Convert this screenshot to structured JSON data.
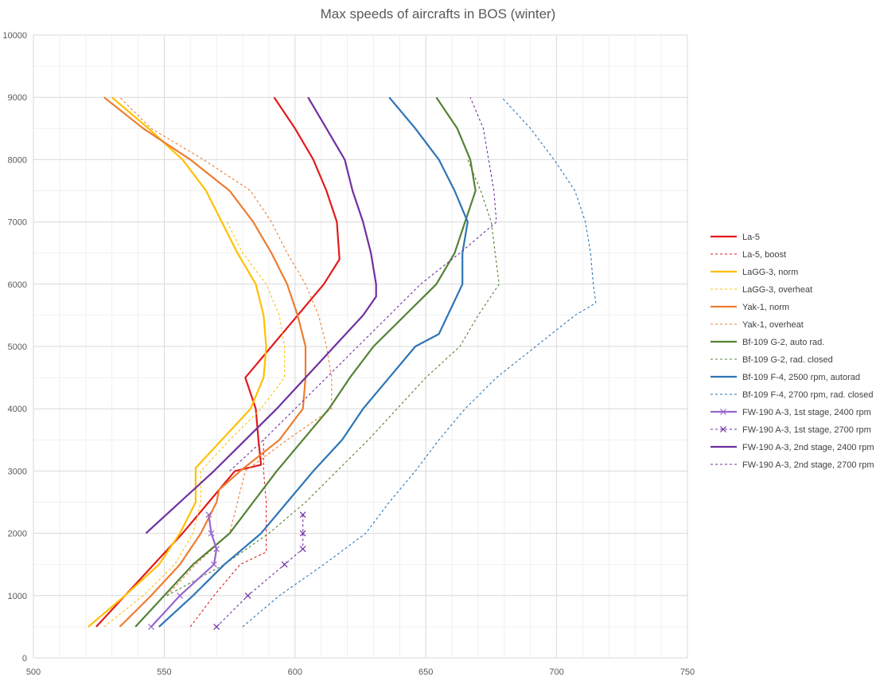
{
  "chart_data": {
    "type": "line",
    "title": "Max speeds of aircrafts in BOS (winter)",
    "xlabel": "",
    "ylabel": "",
    "xlim": [
      500,
      750
    ],
    "ylim": [
      0,
      10000
    ],
    "x_major_ticks": [
      500,
      550,
      600,
      650,
      700,
      750
    ],
    "x_minor_step": 10,
    "y_major_ticks": [
      0,
      1000,
      2000,
      3000,
      4000,
      5000,
      6000,
      7000,
      8000,
      9000,
      10000
    ],
    "y_minor_step": 500,
    "grid": true,
    "legend_position": "right",
    "series": [
      {
        "name": "La-5",
        "color": "#e31a1c",
        "dash": "solid",
        "marker": "none",
        "points": [
          [
            524,
            500
          ],
          [
            535,
            1000
          ],
          [
            546,
            1500
          ],
          [
            557,
            2000
          ],
          [
            567,
            2500
          ],
          [
            577,
            3000
          ],
          [
            587,
            3100
          ],
          [
            586,
            3500
          ],
          [
            585,
            4000
          ],
          [
            581,
            4500
          ],
          [
            583,
            4600
          ],
          [
            591,
            5000
          ],
          [
            601,
            5500
          ],
          [
            611,
            6000
          ],
          [
            617,
            6400
          ],
          [
            616,
            7000
          ],
          [
            612,
            7500
          ],
          [
            607,
            8000
          ],
          [
            600,
            8500
          ],
          [
            592,
            9000
          ]
        ]
      },
      {
        "name": "La-5, boost",
        "color": "#e31a1c",
        "dash": "dashed",
        "marker": "none",
        "points": [
          [
            560,
            500
          ],
          [
            569,
            1000
          ],
          [
            579,
            1500
          ],
          [
            589,
            1700
          ],
          [
            589,
            2000
          ],
          [
            589,
            2500
          ],
          [
            588,
            3000
          ],
          [
            588,
            3500
          ]
        ]
      },
      {
        "name": "LaGG-3, norm",
        "color": "#ffc000",
        "dash": "solid",
        "marker": "none",
        "points": [
          [
            521,
            500
          ],
          [
            535,
            1000
          ],
          [
            548,
            1500
          ],
          [
            556,
            2000
          ],
          [
            562,
            2500
          ],
          [
            562,
            3000
          ],
          [
            562,
            3050
          ],
          [
            572,
            3500
          ],
          [
            583,
            4000
          ],
          [
            588,
            4500
          ],
          [
            589,
            5000
          ],
          [
            588,
            5500
          ],
          [
            585,
            6000
          ],
          [
            578,
            6500
          ],
          [
            572,
            7000
          ],
          [
            566,
            7500
          ],
          [
            557,
            8000
          ],
          [
            544,
            8500
          ],
          [
            530,
            9000
          ]
        ]
      },
      {
        "name": "LaGG-3, overheat",
        "color": "#ffc000",
        "dash": "dashed",
        "marker": "none",
        "points": [
          [
            527,
            500
          ],
          [
            542,
            1000
          ],
          [
            554,
            1500
          ],
          [
            561,
            2000
          ],
          [
            564,
            2500
          ],
          [
            564,
            3000
          ],
          [
            575,
            3500
          ],
          [
            587,
            4000
          ],
          [
            596,
            4500
          ],
          [
            596,
            5000
          ],
          [
            594,
            5500
          ],
          [
            589,
            6000
          ],
          [
            580,
            6500
          ],
          [
            574,
            7000
          ]
        ]
      },
      {
        "name": "Yak-1, norm",
        "color": "#ed7d31",
        "dash": "solid",
        "marker": "none",
        "points": [
          [
            533,
            500
          ],
          [
            545,
            1000
          ],
          [
            556,
            1500
          ],
          [
            564,
            2000
          ],
          [
            570,
            2500
          ],
          [
            571,
            2700
          ],
          [
            579,
            3000
          ],
          [
            594,
            3500
          ],
          [
            603,
            4000
          ],
          [
            604,
            4500
          ],
          [
            604,
            5000
          ],
          [
            601,
            5500
          ],
          [
            597,
            6000
          ],
          [
            591,
            6500
          ],
          [
            584,
            7000
          ],
          [
            575,
            7500
          ],
          [
            560,
            8000
          ],
          [
            542,
            8500
          ],
          [
            527,
            9000
          ]
        ]
      },
      {
        "name": "Yak-1, overheat",
        "color": "#ed7d31",
        "dash": "dashed",
        "marker": "none",
        "points": [
          [
            551,
            1000
          ],
          [
            562,
            1500
          ],
          [
            575,
            2000
          ],
          [
            578,
            2500
          ],
          [
            581,
            3000
          ],
          [
            597,
            3500
          ],
          [
            614,
            4000
          ],
          [
            614,
            4500
          ],
          [
            612,
            5000
          ],
          [
            609,
            5500
          ],
          [
            604,
            6000
          ],
          [
            597,
            6500
          ],
          [
            591,
            7000
          ],
          [
            583,
            7500
          ],
          [
            565,
            8000
          ],
          [
            545,
            8500
          ],
          [
            533,
            9000
          ]
        ]
      },
      {
        "name": "Bf-109 G-2, auto rad.",
        "color": "#548235",
        "dash": "solid",
        "marker": "none",
        "points": [
          [
            539,
            500
          ],
          [
            550,
            1000
          ],
          [
            561,
            1500
          ],
          [
            575,
            2000
          ],
          [
            584,
            2500
          ],
          [
            593,
            3000
          ],
          [
            603,
            3500
          ],
          [
            613,
            4000
          ],
          [
            621,
            4500
          ],
          [
            630,
            5000
          ],
          [
            642,
            5500
          ],
          [
            654,
            6000
          ],
          [
            661,
            6500
          ],
          [
            665,
            7000
          ],
          [
            669,
            7500
          ],
          [
            667,
            8000
          ],
          [
            662,
            8500
          ],
          [
            654,
            9000
          ]
        ]
      },
      {
        "name": "Bf-109 G-2, rad. closed",
        "color": "#548235",
        "dash": "dashed",
        "marker": "none",
        "points": [
          [
            551,
            1000
          ],
          [
            573,
            1500
          ],
          [
            590,
            2000
          ],
          [
            604,
            2500
          ],
          [
            616,
            3000
          ],
          [
            628,
            3500
          ],
          [
            639,
            4000
          ],
          [
            650,
            4500
          ],
          [
            663,
            5000
          ],
          [
            670,
            5500
          ],
          [
            678,
            6000
          ],
          [
            675,
            7000
          ],
          [
            671,
            7500
          ],
          [
            666,
            8000
          ]
        ]
      },
      {
        "name": "Bf-109 F-4, 2500 rpm, autorad",
        "color": "#2e75b6",
        "dash": "solid",
        "marker": "none",
        "points": [
          [
            548,
            500
          ],
          [
            561,
            1000
          ],
          [
            573,
            1500
          ],
          [
            587,
            2000
          ],
          [
            597,
            2500
          ],
          [
            607,
            3000
          ],
          [
            618,
            3500
          ],
          [
            626,
            4000
          ],
          [
            636,
            4500
          ],
          [
            646,
            5000
          ],
          [
            655,
            5200
          ],
          [
            664,
            6000
          ],
          [
            664,
            6500
          ],
          [
            666,
            7000
          ],
          [
            661,
            7500
          ],
          [
            655,
            8000
          ],
          [
            646,
            8500
          ],
          [
            636,
            9000
          ]
        ]
      },
      {
        "name": "Bf-109 F-4, 2700 rpm, rad. closed",
        "color": "#2e75b6",
        "dash": "dashed",
        "marker": "none",
        "points": [
          [
            580,
            500
          ],
          [
            594,
            1000
          ],
          [
            611,
            1500
          ],
          [
            627,
            2000
          ],
          [
            636,
            2500
          ],
          [
            646,
            3000
          ],
          [
            655,
            3500
          ],
          [
            665,
            4000
          ],
          [
            677,
            4500
          ],
          [
            692,
            5000
          ],
          [
            707,
            5500
          ],
          [
            715,
            5700
          ],
          [
            714,
            6000
          ],
          [
            713,
            6500
          ],
          [
            711,
            7000
          ],
          [
            707,
            7500
          ],
          [
            699,
            8000
          ],
          [
            690,
            8500
          ],
          [
            679,
            9000
          ]
        ]
      },
      {
        "name": "FW-190 A-3, 1st stage, 2400 rpm",
        "color": "#9966cc",
        "dash": "solid",
        "marker": "x",
        "points": [
          [
            545,
            500
          ],
          [
            556,
            1000
          ],
          [
            569,
            1500
          ],
          [
            570,
            1750
          ],
          [
            568,
            2000
          ],
          [
            567,
            2300
          ]
        ]
      },
      {
        "name": "FW-190 A-3, 1st stage, 2700 rpm",
        "color": "#7030a0",
        "dash": "dashed",
        "marker": "x",
        "points": [
          [
            570,
            500
          ],
          [
            582,
            1000
          ],
          [
            596,
            1500
          ],
          [
            603,
            1750
          ],
          [
            603,
            2000
          ],
          [
            603,
            2300
          ]
        ]
      },
      {
        "name": "FW-190 A-3, 2nd stage, 2400 rpm",
        "color": "#7030a0",
        "dash": "solid",
        "marker": "none",
        "points": [
          [
            543,
            2000
          ],
          [
            556,
            2500
          ],
          [
            569,
            3000
          ],
          [
            581,
            3500
          ],
          [
            593,
            4000
          ],
          [
            604,
            4500
          ],
          [
            615,
            5000
          ],
          [
            626,
            5500
          ],
          [
            631,
            5800
          ],
          [
            631,
            6000
          ],
          [
            629,
            6500
          ],
          [
            626,
            7000
          ],
          [
            622,
            7500
          ],
          [
            619,
            8000
          ],
          [
            612,
            8500
          ],
          [
            605,
            9000
          ]
        ]
      },
      {
        "name": "FW-190 A-3, 2nd stage, 2700 rpm",
        "color": "#7030a0",
        "dash": "dashed",
        "marker": "none",
        "points": [
          [
            575,
            3000
          ],
          [
            588,
            3500
          ],
          [
            600,
            4000
          ],
          [
            612,
            4500
          ],
          [
            624,
            5000
          ],
          [
            636,
            5500
          ],
          [
            648,
            6000
          ],
          [
            663,
            6500
          ],
          [
            677,
            7000
          ],
          [
            676,
            7500
          ],
          [
            674,
            8000
          ],
          [
            672,
            8500
          ],
          [
            667,
            9000
          ]
        ]
      }
    ]
  }
}
